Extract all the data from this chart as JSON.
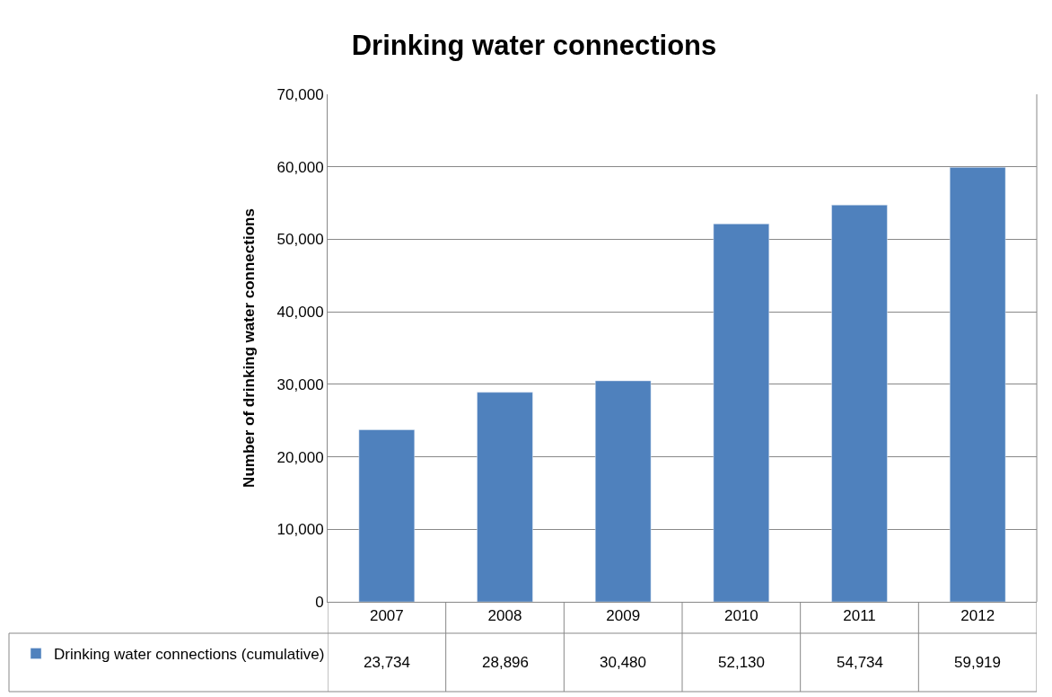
{
  "chart_data": {
    "type": "bar",
    "title": "Drinking water connections",
    "ylabel": "Number of drinking water connections",
    "categories": [
      "2007",
      "2008",
      "2009",
      "2010",
      "2011",
      "2012"
    ],
    "series": [
      {
        "name": "Drinking water connections (cumulative)",
        "color": "#4f81bd",
        "values": [
          23734,
          28896,
          30480,
          52130,
          54734,
          59919
        ],
        "value_labels": [
          "23,734",
          "28,896",
          "30,480",
          "52,130",
          "54,734",
          "59,919"
        ]
      }
    ],
    "ylim": [
      0,
      70000
    ],
    "yticks": [
      {
        "value": 0,
        "label": "0"
      },
      {
        "value": 10000,
        "label": "10,000"
      },
      {
        "value": 20000,
        "label": "20,000"
      },
      {
        "value": 30000,
        "label": "30,000"
      },
      {
        "value": 40000,
        "label": "40,000"
      },
      {
        "value": 50000,
        "label": "50,000"
      },
      {
        "value": 60000,
        "label": "60,000"
      },
      {
        "value": 70000,
        "label": "70,000"
      }
    ],
    "grid": "y",
    "legend": "bottom left"
  }
}
